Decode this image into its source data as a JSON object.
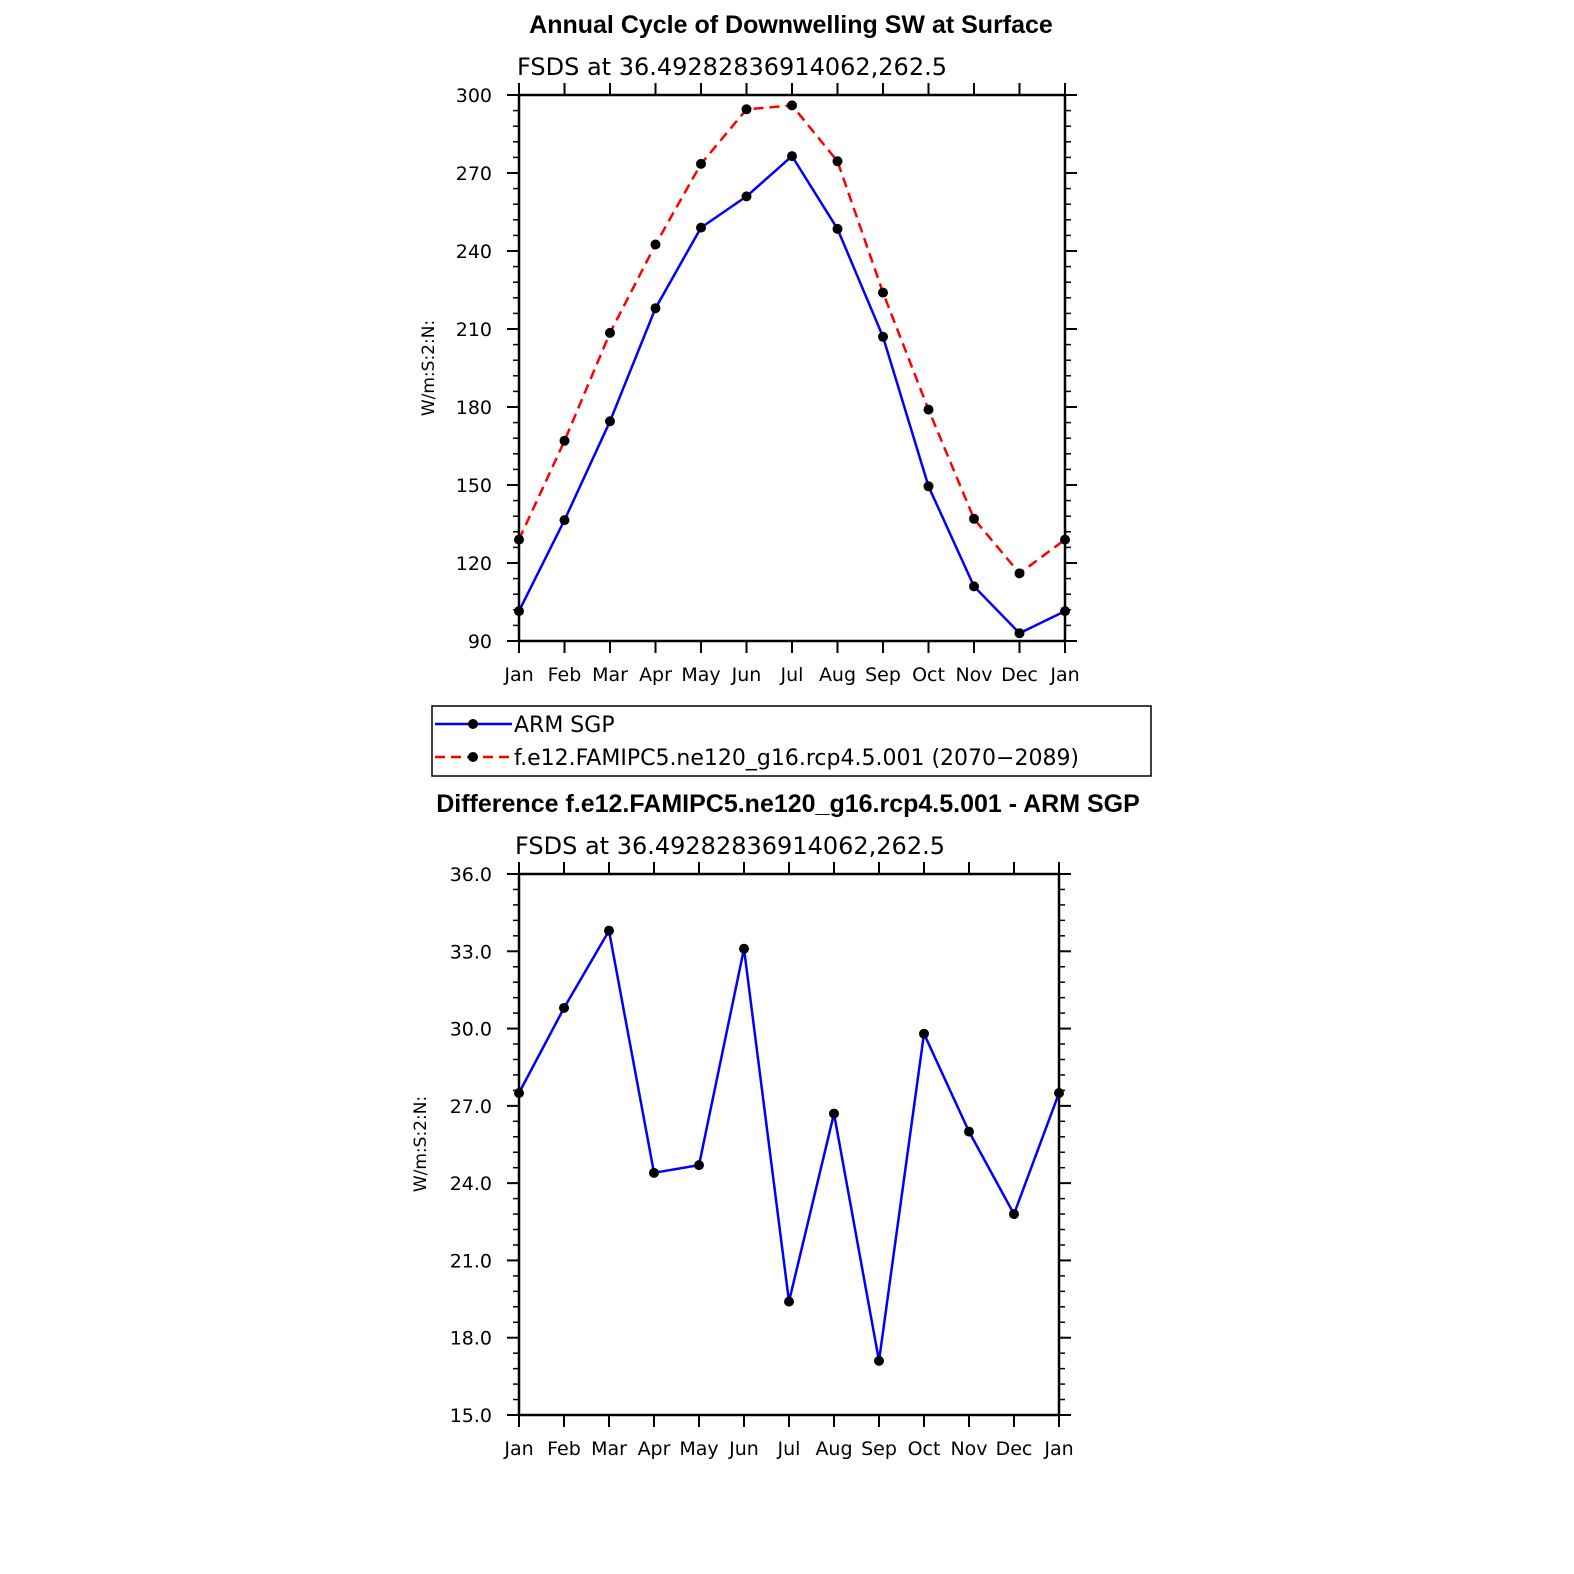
{
  "chart_data": [
    {
      "type": "line",
      "title": "Annual Cycle of Downwelling SW at Surface",
      "subtitle": "FSDS at 36.49282836914062,262.5",
      "ylabel": "W/m:S:2:N:",
      "ylim": [
        90,
        300
      ],
      "yticks": [
        "300",
        "270",
        "240",
        "210",
        "180",
        "150",
        "120",
        "90"
      ],
      "categories": [
        "Jan",
        "Feb",
        "Mar",
        "Apr",
        "May",
        "Jun",
        "Jul",
        "Aug",
        "Sep",
        "Oct",
        "Nov",
        "Dec",
        "Jan"
      ],
      "series": [
        {
          "name": "ARM SGP",
          "color": "#0000ff",
          "dash": "solid",
          "values": [
            101.5,
            136.5,
            174.5,
            218,
            249,
            261,
            276.5,
            248.5,
            207,
            149.5,
            111,
            93,
            101.5
          ]
        },
        {
          "name": "f.e12.FAMIPC5.ne120_g16.rcp4.5.001 (2070−2089)",
          "color": "#ff0000",
          "dash": "dashed",
          "values": [
            129,
            167,
            208.5,
            242.5,
            273.5,
            294.5,
            296,
            274.5,
            224,
            179,
            137,
            116,
            129
          ]
        }
      ],
      "legend": "bottom"
    },
    {
      "type": "line",
      "title": "Difference f.e12.FAMIPC5.ne120_g16.rcp4.5.001 - ARM SGP",
      "subtitle": "FSDS at 36.49282836914062,262.5",
      "ylabel": "W/m:S:2:N:",
      "ylim": [
        15,
        36
      ],
      "yticks": [
        "36.0",
        "33.0",
        "30.0",
        "27.0",
        "24.0",
        "21.0",
        "18.0",
        "15.0"
      ],
      "categories": [
        "Jan",
        "Feb",
        "Mar",
        "Apr",
        "May",
        "Jun",
        "Jul",
        "Aug",
        "Sep",
        "Oct",
        "Nov",
        "Dec",
        "Jan"
      ],
      "series": [
        {
          "color": "#0000ff",
          "dash": "solid",
          "values": [
            27.5,
            30.8,
            33.8,
            24.4,
            24.7,
            33.1,
            19.4,
            26.7,
            17.1,
            29.8,
            26.0,
            22.8,
            27.5
          ]
        }
      ]
    }
  ]
}
